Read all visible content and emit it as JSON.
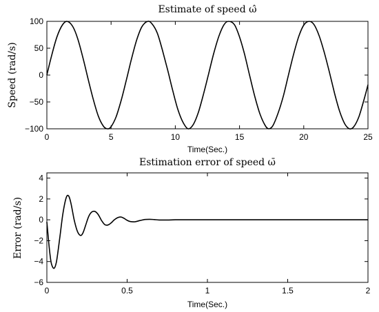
{
  "chart_data": [
    {
      "type": "line",
      "title": "Estimate of speed ω̂",
      "xlabel": "Time(Sec.)",
      "ylabel": "Speed (rad/s)",
      "xlim": [
        0,
        25
      ],
      "ylim": [
        -100,
        100
      ],
      "xticks": [
        0,
        5,
        10,
        15,
        20,
        25
      ],
      "xtick_labels": [
        "0",
        "5",
        "10",
        "15",
        "20",
        "25"
      ],
      "yticks": [
        100,
        50,
        0,
        -50,
        -100
      ],
      "ytick_labels": [
        "100",
        "50",
        "0",
        "−50",
        "−100"
      ],
      "grid": false,
      "series": [
        {
          "x": [
            0,
            0.4,
            0.8,
            1.2,
            1.57,
            2.0,
            2.4,
            2.8,
            3.2,
            3.6,
            4.0,
            4.4,
            4.71,
            5.0,
            5.4,
            5.8,
            6.2,
            6.6,
            7.0,
            7.4,
            7.85,
            8.2,
            8.6,
            9.0,
            9.4,
            9.8,
            10.2,
            10.6,
            11.0,
            11.4,
            11.8,
            12.2,
            12.6,
            13.0,
            13.4,
            13.8,
            14.14,
            14.6,
            15.0,
            15.4,
            15.8,
            16.2,
            16.6,
            17.0,
            17.28,
            17.6,
            18.0,
            18.4,
            18.8,
            19.2,
            19.6,
            20.0,
            20.42,
            20.8,
            21.2,
            21.6,
            22.0,
            22.4,
            22.8,
            23.2,
            23.56,
            23.9,
            24.3,
            24.7,
            25.0
          ],
          "y": [
            0,
            39,
            72,
            93,
            100,
            91,
            68,
            33,
            -6,
            -44,
            -76,
            -95,
            -100,
            -96,
            -77,
            -46,
            -8,
            31,
            66,
            90,
            100,
            95,
            78,
            46,
            10,
            -29,
            -64,
            -88,
            -100,
            -92,
            -69,
            -35,
            3,
            41,
            73,
            94,
            100,
            94,
            71,
            38,
            -2,
            -41,
            -73,
            -94,
            -100,
            -94,
            -71,
            -40,
            -1,
            38,
            71,
            93,
            100,
            94,
            73,
            42,
            5,
            -34,
            -68,
            -91,
            -100,
            -96,
            -77,
            -45,
            -18
          ]
        }
      ]
    },
    {
      "type": "line",
      "title": "Estimation error of speed ω̄",
      "xlabel": "Time(Sec.)",
      "ylabel": "Error (rad/s)",
      "xlim": [
        0,
        2
      ],
      "ylim": [
        -6,
        4.5
      ],
      "xticks": [
        0,
        0.5,
        1,
        1.5,
        2
      ],
      "xtick_labels": [
        "0",
        "0.5",
        "1",
        "1.5",
        "2"
      ],
      "yticks": [
        4,
        2,
        0,
        -2,
        -4,
        -6
      ],
      "ytick_labels": [
        "4",
        "2",
        "0",
        "−2",
        "−4",
        "−6"
      ],
      "grid": false,
      "series": [
        {
          "x": [
            0,
            0.01,
            0.02,
            0.03,
            0.045,
            0.06,
            0.08,
            0.1,
            0.12,
            0.135,
            0.15,
            0.17,
            0.19,
            0.21,
            0.225,
            0.24,
            0.26,
            0.28,
            0.3,
            0.32,
            0.34,
            0.36,
            0.38,
            0.4,
            0.42,
            0.44,
            0.46,
            0.48,
            0.5,
            0.52,
            0.55,
            0.58,
            0.61,
            0.64,
            0.67,
            0.7,
            0.75,
            0.8,
            0.9,
            1.0,
            1.25,
            1.5,
            1.75,
            2.0
          ],
          "y": [
            -0.2,
            -1.9,
            -3.4,
            -4.3,
            -4.65,
            -4.0,
            -1.8,
            0.6,
            2.1,
            2.3,
            1.6,
            0.0,
            -1.1,
            -1.5,
            -1.25,
            -0.6,
            0.3,
            0.75,
            0.8,
            0.5,
            -0.05,
            -0.45,
            -0.5,
            -0.3,
            0.0,
            0.2,
            0.27,
            0.15,
            -0.05,
            -0.17,
            -0.18,
            -0.07,
            0.03,
            0.05,
            0.02,
            -0.02,
            -0.02,
            0.0,
            0.0,
            0.0,
            0.0,
            0.0,
            0.0,
            0.0
          ]
        }
      ]
    }
  ]
}
